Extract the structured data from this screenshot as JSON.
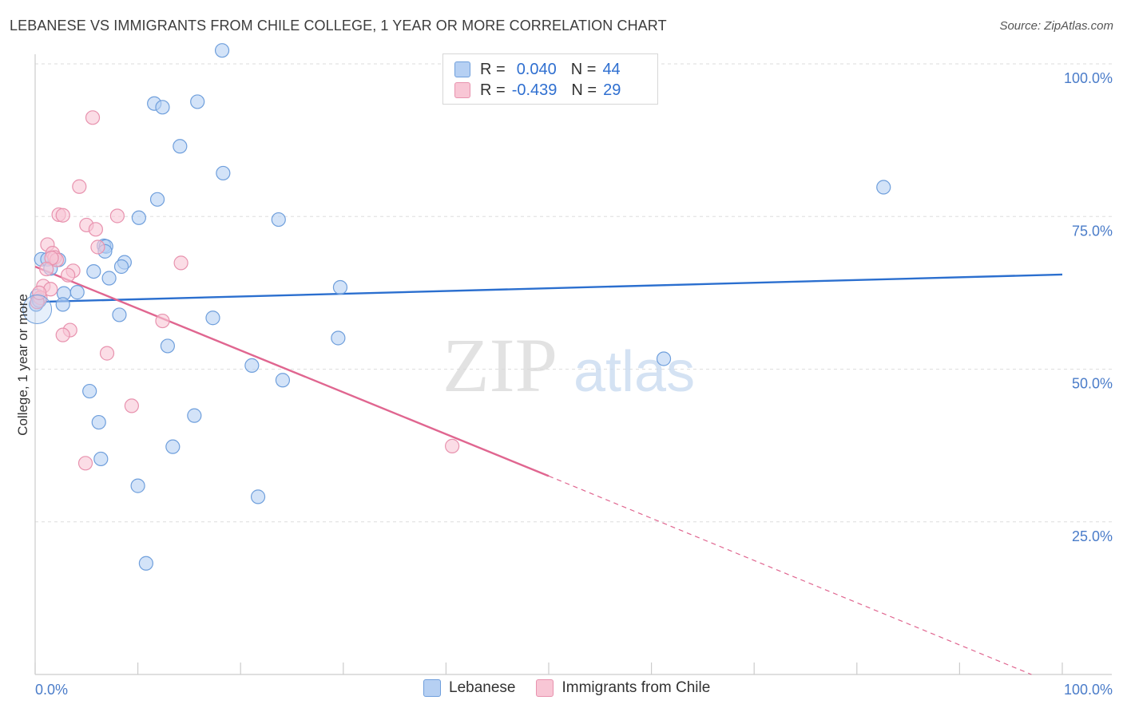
{
  "header": {
    "title": "LEBANESE VS IMMIGRANTS FROM CHILE COLLEGE, 1 YEAR OR MORE CORRELATION CHART",
    "source": "Source: ZipAtlas.com"
  },
  "watermark": {
    "zip": "ZIP",
    "atlas": "atlas"
  },
  "colors": {
    "blue_fill": "#b6d0f3",
    "blue_stroke": "#6f9fdc",
    "blue_line": "#2b6fcf",
    "pink_fill": "#f8c6d5",
    "pink_stroke": "#e892ae",
    "pink_line": "#e06690",
    "tick_text": "#4a7cc9"
  },
  "legend": {
    "rows": [
      {
        "r_label": "R =",
        "r_value": "0.040",
        "n_label": "N =",
        "n_value": "44"
      },
      {
        "r_label": "R =",
        "r_value": "-0.439",
        "n_label": "N =",
        "n_value": "29"
      }
    ]
  },
  "bottom_legend": [
    "Lebanese",
    "Immigrants from Chile"
  ],
  "chart_data": {
    "type": "scatter",
    "title": "LEBANESE VS IMMIGRANTS FROM CHILE COLLEGE, 1 YEAR OR MORE CORRELATION CHART",
    "xlabel": "",
    "ylabel": "College, 1 year or more",
    "xlim": [
      0,
      100
    ],
    "ylim": [
      0,
      100
    ],
    "x_tick_labels": [
      "0.0%",
      "100.0%"
    ],
    "y_ticks": [
      25,
      50,
      75,
      100
    ],
    "y_tick_labels": [
      "25.0%",
      "50.0%",
      "75.0%",
      "100.0%"
    ],
    "series": [
      {
        "name": "Lebanese",
        "R": 0.04,
        "N": 44,
        "trend": {
          "x": [
            0,
            100
          ],
          "y": [
            61.0,
            65.5
          ]
        },
        "points": [
          {
            "x": 18.2,
            "y": 102.2
          },
          {
            "x": 11.6,
            "y": 93.5
          },
          {
            "x": 12.4,
            "y": 92.9
          },
          {
            "x": 15.8,
            "y": 93.8
          },
          {
            "x": 14.1,
            "y": 86.5
          },
          {
            "x": 18.3,
            "y": 82.1
          },
          {
            "x": 11.9,
            "y": 77.8
          },
          {
            "x": 10.1,
            "y": 74.8
          },
          {
            "x": 23.7,
            "y": 74.5
          },
          {
            "x": 6.7,
            "y": 70.2
          },
          {
            "x": 6.9,
            "y": 70.1
          },
          {
            "x": 6.8,
            "y": 69.3
          },
          {
            "x": 0.6,
            "y": 68.0
          },
          {
            "x": 1.2,
            "y": 68.0
          },
          {
            "x": 2.3,
            "y": 67.9
          },
          {
            "x": 8.7,
            "y": 67.5
          },
          {
            "x": 8.4,
            "y": 66.8
          },
          {
            "x": 1.5,
            "y": 66.5
          },
          {
            "x": 5.7,
            "y": 66.0
          },
          {
            "x": 7.2,
            "y": 64.9
          },
          {
            "x": 29.7,
            "y": 63.4
          },
          {
            "x": 2.8,
            "y": 62.4
          },
          {
            "x": 4.1,
            "y": 62.6
          },
          {
            "x": 0.3,
            "y": 61.4
          },
          {
            "x": 2.7,
            "y": 60.6
          },
          {
            "x": 8.2,
            "y": 58.9
          },
          {
            "x": 17.3,
            "y": 58.4
          },
          {
            "x": 29.5,
            "y": 55.1
          },
          {
            "x": 12.9,
            "y": 53.8
          },
          {
            "x": 61.2,
            "y": 51.7
          },
          {
            "x": 21.1,
            "y": 50.6
          },
          {
            "x": 24.1,
            "y": 48.2
          },
          {
            "x": 5.3,
            "y": 46.4
          },
          {
            "x": 15.5,
            "y": 42.4
          },
          {
            "x": 6.2,
            "y": 41.3
          },
          {
            "x": 13.4,
            "y": 37.3
          },
          {
            "x": 6.4,
            "y": 35.3
          },
          {
            "x": 10.0,
            "y": 30.9
          },
          {
            "x": 21.7,
            "y": 29.1
          },
          {
            "x": 10.8,
            "y": 18.2
          },
          {
            "x": 82.6,
            "y": 79.8
          },
          {
            "x": 0.1,
            "y": 60.6
          },
          {
            "x": 0.2,
            "y": 62.0
          },
          {
            "x": 0.4,
            "y": 61.2
          }
        ]
      },
      {
        "name": "Immigrants from Chile",
        "R": -0.439,
        "N": 29,
        "trend": {
          "x": [
            0,
            50
          ],
          "y": [
            66.8,
            32.5
          ]
        },
        "trend_dashed": {
          "x": [
            50,
            97
          ],
          "y": [
            32.5,
            0
          ]
        },
        "points": [
          {
            "x": 5.6,
            "y": 91.2
          },
          {
            "x": 4.3,
            "y": 79.9
          },
          {
            "x": 2.3,
            "y": 75.3
          },
          {
            "x": 2.7,
            "y": 75.2
          },
          {
            "x": 8.0,
            "y": 75.1
          },
          {
            "x": 5.0,
            "y": 73.6
          },
          {
            "x": 5.9,
            "y": 72.9
          },
          {
            "x": 1.2,
            "y": 70.4
          },
          {
            "x": 6.1,
            "y": 70.0
          },
          {
            "x": 1.7,
            "y": 69.0
          },
          {
            "x": 1.9,
            "y": 68.3
          },
          {
            "x": 2.1,
            "y": 67.9
          },
          {
            "x": 1.6,
            "y": 68.2
          },
          {
            "x": 14.2,
            "y": 67.4
          },
          {
            "x": 1.1,
            "y": 66.4
          },
          {
            "x": 3.7,
            "y": 66.1
          },
          {
            "x": 3.2,
            "y": 65.4
          },
          {
            "x": 0.8,
            "y": 63.6
          },
          {
            "x": 1.5,
            "y": 63.1
          },
          {
            "x": 0.5,
            "y": 61.7
          },
          {
            "x": 12.4,
            "y": 57.9
          },
          {
            "x": 3.4,
            "y": 56.4
          },
          {
            "x": 2.7,
            "y": 55.6
          },
          {
            "x": 7.0,
            "y": 52.6
          },
          {
            "x": 9.4,
            "y": 44.0
          },
          {
            "x": 40.6,
            "y": 37.4
          },
          {
            "x": 4.9,
            "y": 34.6
          },
          {
            "x": 0.2,
            "y": 61.0
          },
          {
            "x": 0.4,
            "y": 62.5
          }
        ]
      }
    ]
  }
}
